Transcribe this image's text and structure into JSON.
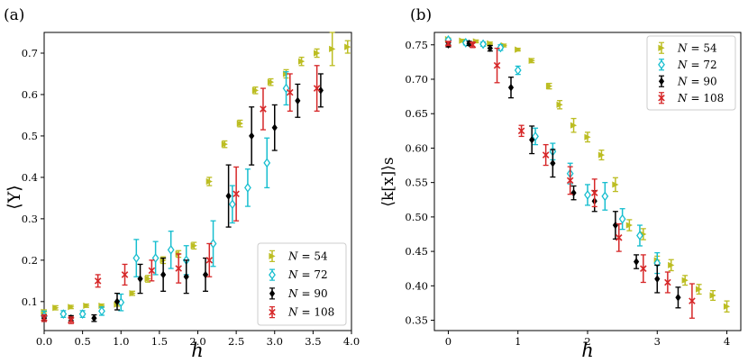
{
  "chart_data": [
    {
      "type": "scatter",
      "panel_label": "(a)",
      "title": "",
      "xlabel": "h",
      "ylabel": "⟨Υ⟩",
      "xlim": [
        0.0,
        4.0
      ],
      "ylim": [
        0.03,
        0.75
      ],
      "xticks": [
        0.0,
        0.5,
        1.0,
        1.5,
        2.0,
        2.5,
        3.0,
        3.5,
        4.0
      ],
      "xtick_labels": [
        "0.0",
        "0.5",
        "1.0",
        "1.5",
        "2.0",
        "2.5",
        "3.0",
        "3.5",
        "4.0"
      ],
      "yticks": [
        0.1,
        0.2,
        0.3,
        0.4,
        0.5,
        0.6,
        0.7
      ],
      "ytick_labels": [
        "0.1",
        "0.2",
        "0.3",
        "0.4",
        "0.5",
        "0.6",
        "0.7"
      ],
      "legend_position": "bottom-right",
      "series": [
        {
          "name": "N = 54",
          "legend_prefix": "N",
          "legend_value": "= 54",
          "color": "#bcbd22",
          "marker": "triangle-right",
          "x": [
            0.0,
            0.15,
            0.35,
            0.55,
            0.75,
            0.95,
            1.15,
            1.35,
            1.55,
            1.75,
            1.95,
            2.15,
            2.35,
            2.55,
            2.75,
            2.95,
            3.15,
            3.35,
            3.55,
            3.75,
            3.95
          ],
          "y": [
            0.075,
            0.085,
            0.087,
            0.09,
            0.09,
            0.093,
            0.12,
            0.155,
            0.2,
            0.215,
            0.235,
            0.39,
            0.48,
            0.53,
            0.61,
            0.63,
            0.65,
            0.68,
            0.7,
            0.71,
            0.715
          ],
          "yerr": [
            0.005,
            0.005,
            0.004,
            0.004,
            0.004,
            0.004,
            0.005,
            0.008,
            0.008,
            0.008,
            0.008,
            0.01,
            0.008,
            0.008,
            0.008,
            0.008,
            0.01,
            0.01,
            0.01,
            0.04,
            0.015
          ]
        },
        {
          "name": "N = 72",
          "legend_prefix": "N",
          "legend_value": "= 72",
          "color": "#17becf",
          "marker": "thin-diamond",
          "x": [
            0.0,
            0.25,
            0.5,
            0.75,
            1.0,
            1.2,
            1.45,
            1.65,
            1.85,
            2.2,
            2.45,
            2.65,
            2.9,
            3.15
          ],
          "y": [
            0.065,
            0.07,
            0.07,
            0.077,
            0.098,
            0.205,
            0.205,
            0.225,
            0.2,
            0.24,
            0.335,
            0.375,
            0.435,
            0.615
          ],
          "yerr": [
            0.012,
            0.008,
            0.008,
            0.01,
            0.02,
            0.045,
            0.04,
            0.045,
            0.035,
            0.055,
            0.045,
            0.045,
            0.06,
            0.04
          ]
        },
        {
          "name": "N = 90",
          "legend_prefix": "N",
          "legend_value": "= 90",
          "color": "#000000",
          "marker": "thin-diamond",
          "x": [
            0.0,
            0.35,
            0.65,
            0.95,
            1.25,
            1.55,
            1.85,
            2.1,
            2.4,
            2.7,
            3.0,
            3.3,
            3.6
          ],
          "y": [
            0.06,
            0.06,
            0.06,
            0.1,
            0.155,
            0.165,
            0.16,
            0.165,
            0.355,
            0.5,
            0.52,
            0.585,
            0.61
          ],
          "yerr": [
            0.008,
            0.006,
            0.008,
            0.02,
            0.035,
            0.04,
            0.04,
            0.04,
            0.075,
            0.07,
            0.055,
            0.04,
            0.04
          ]
        },
        {
          "name": "N = 108",
          "legend_prefix": "N",
          "legend_value": "= 108",
          "color": "#d62728",
          "marker": "x",
          "x": [
            0.0,
            0.35,
            0.7,
            1.05,
            1.4,
            1.75,
            2.15,
            2.5,
            2.85,
            3.2,
            3.55
          ],
          "y": [
            0.06,
            0.055,
            0.15,
            0.165,
            0.175,
            0.18,
            0.2,
            0.36,
            0.565,
            0.605,
            0.615
          ],
          "yerr": [
            0.008,
            0.008,
            0.015,
            0.025,
            0.025,
            0.035,
            0.04,
            0.065,
            0.05,
            0.045,
            0.055
          ]
        }
      ]
    },
    {
      "type": "scatter",
      "panel_label": "(b)",
      "title": "",
      "xlabel": "h",
      "ylabel": "⟨k[x]⟩s",
      "xlim": [
        -0.2,
        4.2
      ],
      "ylim": [
        0.335,
        0.768
      ],
      "xticks": [
        0,
        1,
        2,
        3,
        4
      ],
      "xtick_labels": [
        "0",
        "1",
        "2",
        "3",
        "4"
      ],
      "yticks": [
        0.35,
        0.4,
        0.45,
        0.5,
        0.55,
        0.6,
        0.65,
        0.7,
        0.75
      ],
      "ytick_labels": [
        "0.35",
        "0.40",
        "0.45",
        "0.50",
        "0.55",
        "0.60",
        "0.65",
        "0.70",
        "0.75"
      ],
      "legend_position": "top-right",
      "series": [
        {
          "name": "N = 54",
          "legend_prefix": "N",
          "legend_value": "= 54",
          "color": "#bcbd22",
          "marker": "triangle-right",
          "x": [
            0.0,
            0.2,
            0.4,
            0.6,
            0.8,
            1.0,
            1.2,
            1.45,
            1.6,
            1.8,
            2.0,
            2.2,
            2.4,
            2.6,
            2.8,
            3.0,
            3.2,
            3.4,
            3.6,
            3.8,
            4.0
          ],
          "y": [
            0.758,
            0.756,
            0.755,
            0.752,
            0.749,
            0.743,
            0.727,
            0.69,
            0.663,
            0.633,
            0.616,
            0.59,
            0.547,
            0.488,
            0.475,
            0.437,
            0.43,
            0.408,
            0.395,
            0.386,
            0.37
          ],
          "yerr": [
            0.002,
            0.002,
            0.002,
            0.002,
            0.002,
            0.002,
            0.003,
            0.004,
            0.006,
            0.01,
            0.007,
            0.007,
            0.01,
            0.008,
            0.008,
            0.006,
            0.008,
            0.007,
            0.007,
            0.007,
            0.008
          ]
        },
        {
          "name": "N = 72",
          "legend_prefix": "N",
          "legend_value": "= 72",
          "color": "#17becf",
          "marker": "thin-diamond",
          "x": [
            0.0,
            0.25,
            0.5,
            0.75,
            1.0,
            1.25,
            1.5,
            1.75,
            2.0,
            2.25,
            2.5,
            2.75,
            3.0
          ],
          "y": [
            0.757,
            0.753,
            0.751,
            0.746,
            0.713,
            0.617,
            0.595,
            0.563,
            0.532,
            0.53,
            0.497,
            0.473,
            0.433
          ],
          "yerr": [
            0.002,
            0.003,
            0.003,
            0.004,
            0.006,
            0.012,
            0.012,
            0.015,
            0.015,
            0.02,
            0.015,
            0.015,
            0.015
          ]
        },
        {
          "name": "N = 90",
          "legend_prefix": "N",
          "legend_value": "= 90",
          "color": "#000000",
          "marker": "thin-diamond",
          "x": [
            0.0,
            0.3,
            0.6,
            0.9,
            1.2,
            1.5,
            1.8,
            2.1,
            2.4,
            2.7,
            3.0,
            3.3
          ],
          "y": [
            0.75,
            0.752,
            0.745,
            0.688,
            0.612,
            0.578,
            0.535,
            0.523,
            0.488,
            0.435,
            0.41,
            0.383
          ],
          "yerr": [
            0.003,
            0.003,
            0.004,
            0.015,
            0.02,
            0.02,
            0.01,
            0.015,
            0.02,
            0.01,
            0.02,
            0.015
          ]
        },
        {
          "name": "N = 108",
          "legend_prefix": "N",
          "legend_value": "= 108",
          "color": "#d62728",
          "marker": "x",
          "x": [
            0.0,
            0.35,
            0.7,
            1.05,
            1.4,
            1.75,
            2.1,
            2.45,
            2.8,
            3.15,
            3.5
          ],
          "y": [
            0.752,
            0.75,
            0.72,
            0.625,
            0.59,
            0.553,
            0.535,
            0.47,
            0.425,
            0.405,
            0.378
          ],
          "yerr": [
            0.003,
            0.004,
            0.025,
            0.008,
            0.015,
            0.02,
            0.02,
            0.02,
            0.02,
            0.015,
            0.025
          ]
        }
      ]
    }
  ]
}
